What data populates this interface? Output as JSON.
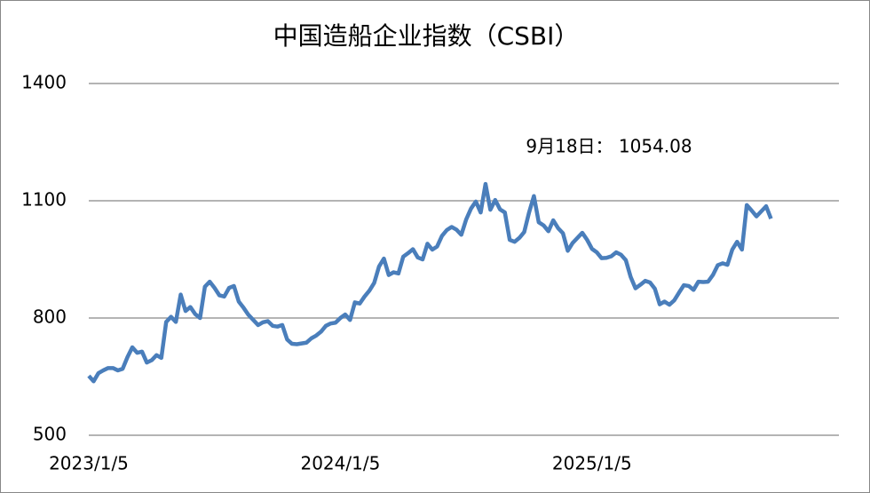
{
  "chart_data": {
    "type": "line",
    "title": "中国造船企业指数（CSBI）",
    "annotation": "9月18日： 1054.08",
    "categories": [
      "2023/1/5",
      null,
      null,
      null,
      null,
      null,
      null,
      null,
      null,
      null,
      null,
      null,
      null,
      null,
      null,
      null,
      null,
      null,
      null,
      null,
      null,
      null,
      null,
      null,
      null,
      null,
      null,
      null,
      null,
      null,
      null,
      null,
      null,
      null,
      null,
      null,
      null,
      null,
      null,
      null,
      null,
      null,
      null,
      null,
      null,
      null,
      null,
      null,
      null,
      null,
      null,
      null,
      "2024/1/5",
      null,
      null,
      null,
      null,
      null,
      null,
      null,
      null,
      null,
      null,
      null,
      null,
      null,
      null,
      null,
      null,
      null,
      null,
      null,
      null,
      null,
      null,
      null,
      null,
      null,
      null,
      null,
      null,
      null,
      null,
      null,
      null,
      null,
      null,
      null,
      null,
      null,
      null,
      null,
      null,
      null,
      null,
      null,
      null,
      null,
      null,
      null,
      null,
      null,
      null,
      null,
      "2025/1/5",
      null,
      null,
      null,
      null,
      null,
      null,
      null,
      null,
      null,
      null,
      null,
      null,
      null,
      null,
      null,
      null,
      null,
      null,
      null,
      null,
      null,
      null,
      null,
      null,
      null,
      null,
      null,
      null,
      null,
      null,
      null,
      null,
      null,
      null,
      null,
      null,
      null
    ],
    "series": [
      {
        "color": "#4a7ebb",
        "values": [
          652,
          638,
          659,
          666,
          672,
          672,
          666,
          670,
          700,
          725,
          711,
          714,
          686,
          692,
          705,
          698,
          790,
          803,
          790,
          860,
          818,
          828,
          810,
          800,
          880,
          893,
          877,
          858,
          855,
          877,
          882,
          842,
          826,
          808,
          795,
          782,
          789,
          792,
          780,
          778,
          782,
          745,
          734,
          733,
          735,
          737,
          748,
          755,
          765,
          780,
          786,
          788,
          800,
          809,
          795,
          840,
          837,
          855,
          870,
          890,
          932,
          952,
          910,
          917,
          914,
          957,
          966,
          976,
          955,
          950,
          990,
          975,
          983,
          1010,
          1025,
          1033,
          1026,
          1013,
          1052,
          1080,
          1098,
          1070,
          1143,
          1077,
          1102,
          1078,
          1070,
          1000,
          995,
          1005,
          1020,
          1070,
          1112,
          1045,
          1037,
          1022,
          1050,
          1030,
          1017,
          972,
          992,
          1005,
          1018,
          1000,
          977,
          968,
          953,
          954,
          958,
          968,
          962,
          948,
          905,
          876,
          885,
          895,
          891,
          875,
          835,
          842,
          834,
          845,
          865,
          884,
          882,
          872,
          893,
          892,
          893,
          910,
          935,
          940,
          936,
          975,
          995,
          975,
          1089,
          1075,
          1060,
          1073,
          1086,
          1054.08
        ]
      }
    ],
    "ylim": [
      500,
      1400
    ],
    "yticks": [
      500,
      800,
      1100,
      1400
    ],
    "grid": true
  }
}
